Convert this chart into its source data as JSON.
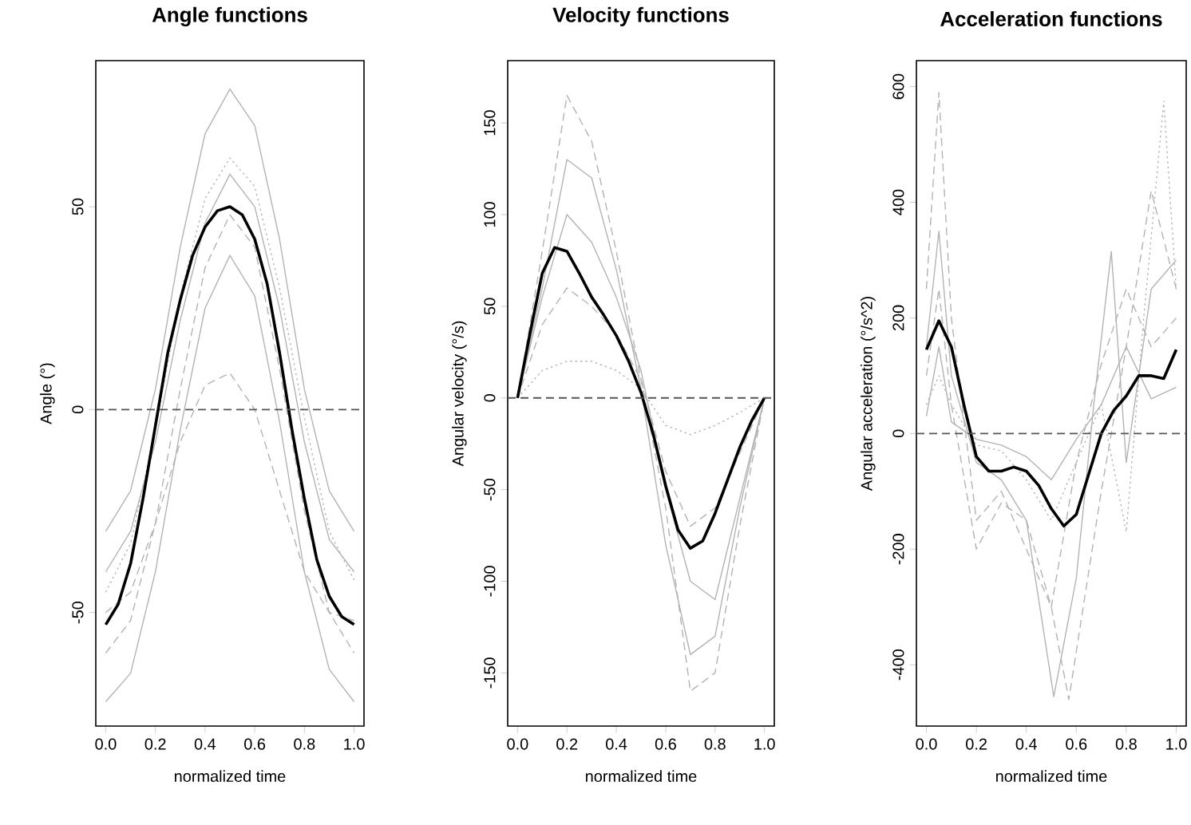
{
  "chart_data": [
    {
      "type": "line",
      "title": "Angle functions",
      "xlabel": "normalized time",
      "ylabel": "Angle (°)",
      "xlim": [
        -0.04,
        1.04
      ],
      "ylim": [
        -78,
        86
      ],
      "xticks": [
        {
          "value": 0,
          "label": "0.0"
        },
        {
          "value": 0.2,
          "label": "0.2"
        },
        {
          "value": 0.4,
          "label": "0.4"
        },
        {
          "value": 0.6,
          "label": "0.6"
        },
        {
          "value": 0.8,
          "label": "0.8"
        },
        {
          "value": 1,
          "label": "1.0"
        }
      ],
      "yticks": [
        -50,
        0,
        50
      ],
      "grid": false,
      "marker": "none",
      "ref_lines": [
        {
          "axis": "y",
          "value": 0,
          "color": "#555555",
          "line_style": "dashed"
        }
      ],
      "series": [
        {
          "color": "#b3b3b3",
          "line_style": "solid",
          "x": [
            0,
            0.1,
            0.2,
            0.3,
            0.4,
            0.5,
            0.6,
            0.7,
            0.8,
            0.9,
            1
          ],
          "values": [
            -30,
            -20,
            5,
            40,
            68,
            79,
            70,
            42,
            5,
            -20,
            -30
          ]
        },
        {
          "color": "#b3b3b3",
          "line_style": "solid",
          "x": [
            0,
            0.1,
            0.2,
            0.3,
            0.4,
            0.5,
            0.6,
            0.7,
            0.8,
            0.9,
            1
          ],
          "values": [
            -72,
            -65,
            -40,
            -5,
            25,
            38,
            28,
            -3,
            -40,
            -64,
            -72
          ]
        },
        {
          "color": "#b3b3b3",
          "line_style": "dashed",
          "x": [
            0,
            0.1,
            0.2,
            0.3,
            0.4,
            0.5,
            0.6,
            0.7,
            0.8,
            0.9,
            1
          ],
          "values": [
            -50,
            -45,
            -28,
            -8,
            6,
            9,
            0,
            -20,
            -40,
            -50,
            -52
          ]
        },
        {
          "color": "#b3b3b3",
          "line_style": "dotted",
          "x": [
            0,
            0.1,
            0.2,
            0.3,
            0.4,
            0.5,
            0.6,
            0.7,
            0.8,
            0.9,
            1
          ],
          "values": [
            -45,
            -33,
            -5,
            28,
            52,
            62,
            55,
            30,
            -2,
            -30,
            -42
          ]
        },
        {
          "color": "#b3b3b3",
          "line_style": "dashed",
          "x": [
            0,
            0.1,
            0.2,
            0.3,
            0.4,
            0.5,
            0.6,
            0.7,
            0.8,
            0.9,
            1
          ],
          "values": [
            -60,
            -52,
            -28,
            5,
            35,
            48,
            40,
            10,
            -25,
            -50,
            -60
          ]
        },
        {
          "color": "#b3b3b3",
          "line_style": "solid",
          "x": [
            0,
            0.1,
            0.2,
            0.3,
            0.4,
            0.5,
            0.6,
            0.7,
            0.8,
            0.9,
            1
          ],
          "values": [
            -40,
            -30,
            -8,
            22,
            46,
            58,
            50,
            25,
            -8,
            -32,
            -40
          ]
        },
        {
          "color": "#000000",
          "line_style": "solid",
          "x": [
            0,
            0.05,
            0.1,
            0.15,
            0.2,
            0.25,
            0.3,
            0.35,
            0.4,
            0.45,
            0.5,
            0.55,
            0.6,
            0.65,
            0.7,
            0.75,
            0.8,
            0.85,
            0.9,
            0.95,
            1
          ],
          "values": [
            -53,
            -48,
            -38,
            -22,
            -4,
            14,
            27,
            38,
            45,
            49,
            50,
            48,
            42,
            31,
            14,
            -5,
            -22,
            -37,
            -46,
            -51,
            -53
          ]
        }
      ]
    },
    {
      "type": "line",
      "title": "Velocity functions",
      "xlabel": "normalized time",
      "ylabel": "Angular velocity (°/s)",
      "xlim": [
        -0.04,
        1.04
      ],
      "ylim": [
        -179,
        184
      ],
      "xticks": [
        {
          "value": 0,
          "label": "0.0"
        },
        {
          "value": 0.2,
          "label": "0.2"
        },
        {
          "value": 0.4,
          "label": "0.4"
        },
        {
          "value": 0.6,
          "label": "0.6"
        },
        {
          "value": 0.8,
          "label": "0.8"
        },
        {
          "value": 1,
          "label": "1.0"
        }
      ],
      "yticks": [
        -150,
        -100,
        -50,
        0,
        50,
        100,
        150
      ],
      "grid": false,
      "marker": "none",
      "ref_lines": [
        {
          "axis": "y",
          "value": 0,
          "color": "#555555",
          "line_style": "dashed"
        }
      ],
      "series": [
        {
          "color": "#b3b3b3",
          "line_style": "dashed",
          "x": [
            0,
            0.1,
            0.2,
            0.3,
            0.4,
            0.5,
            0.6,
            0.7,
            0.8,
            0.9,
            1
          ],
          "values": [
            0,
            80,
            165,
            140,
            80,
            10,
            -60,
            -160,
            -150,
            -70,
            0
          ]
        },
        {
          "color": "#b3b3b3",
          "line_style": "solid",
          "x": [
            0,
            0.1,
            0.2,
            0.3,
            0.4,
            0.5,
            0.6,
            0.7,
            0.8,
            0.9,
            1
          ],
          "values": [
            0,
            60,
            130,
            120,
            70,
            5,
            -80,
            -140,
            -130,
            -60,
            0
          ]
        },
        {
          "color": "#b3b3b3",
          "line_style": "dotted",
          "x": [
            0,
            0.1,
            0.2,
            0.3,
            0.4,
            0.5,
            0.6,
            0.7,
            0.8,
            0.9,
            1
          ],
          "values": [
            0,
            15,
            20,
            20,
            15,
            5,
            -15,
            -20,
            -15,
            -8,
            0
          ]
        },
        {
          "color": "#b3b3b3",
          "line_style": "dashed",
          "x": [
            0,
            0.1,
            0.2,
            0.3,
            0.4,
            0.5,
            0.6,
            0.7,
            0.8,
            0.9,
            1
          ],
          "values": [
            0,
            40,
            60,
            50,
            35,
            10,
            -40,
            -70,
            -60,
            -30,
            0
          ]
        },
        {
          "color": "#b3b3b3",
          "line_style": "solid",
          "x": [
            0,
            0.1,
            0.2,
            0.3,
            0.4,
            0.5,
            0.6,
            0.7,
            0.8,
            0.9,
            1
          ],
          "values": [
            0,
            55,
            100,
            85,
            55,
            15,
            -50,
            -100,
            -110,
            -55,
            0
          ]
        },
        {
          "color": "#000000",
          "line_style": "solid",
          "x": [
            0,
            0.05,
            0.1,
            0.15,
            0.2,
            0.25,
            0.3,
            0.35,
            0.4,
            0.45,
            0.5,
            0.55,
            0.6,
            0.65,
            0.7,
            0.75,
            0.8,
            0.85,
            0.9,
            0.95,
            1
          ],
          "values": [
            0,
            35,
            68,
            82,
            80,
            68,
            55,
            45,
            34,
            20,
            3,
            -20,
            -48,
            -72,
            -82,
            -78,
            -63,
            -45,
            -27,
            -12,
            0
          ]
        }
      ]
    },
    {
      "type": "line",
      "title": "Acceleration functions",
      "xlabel": "normalized time",
      "ylabel": "Angular acceleration (°/s^2)",
      "xlim": [
        -0.04,
        1.04
      ],
      "ylim": [
        -506,
        645
      ],
      "xticks": [
        {
          "value": 0,
          "label": "0.0"
        },
        {
          "value": 0.2,
          "label": "0.2"
        },
        {
          "value": 0.4,
          "label": "0.4"
        },
        {
          "value": 0.6,
          "label": "0.6"
        },
        {
          "value": 0.8,
          "label": "0.8"
        },
        {
          "value": 1,
          "label": "1.0"
        }
      ],
      "yticks": [
        -400,
        -200,
        0,
        200,
        400,
        600
      ],
      "grid": false,
      "marker": "none",
      "ref_lines": [
        {
          "axis": "y",
          "value": 0,
          "color": "#555555",
          "line_style": "dashed"
        }
      ],
      "series": [
        {
          "color": "#b3b3b3",
          "line_style": "dashed",
          "x": [
            0,
            0.05,
            0.1,
            0.2,
            0.3,
            0.4,
            0.5,
            0.57,
            0.7,
            0.8,
            0.9,
            1
          ],
          "values": [
            250,
            590,
            200,
            -150,
            -100,
            -200,
            -300,
            -460,
            -100,
            150,
            420,
            250
          ]
        },
        {
          "color": "#b3b3b3",
          "line_style": "solid",
          "x": [
            0,
            0.05,
            0.1,
            0.2,
            0.3,
            0.4,
            0.51,
            0.6,
            0.67,
            0.74,
            0.8,
            0.9,
            1
          ],
          "values": [
            150,
            350,
            100,
            -50,
            -80,
            -150,
            -455,
            -250,
            50,
            315,
            -50,
            250,
            300
          ]
        },
        {
          "color": "#b3b3b3",
          "line_style": "dotted",
          "x": [
            0,
            0.05,
            0.1,
            0.2,
            0.3,
            0.4,
            0.5,
            0.6,
            0.7,
            0.8,
            0.87,
            0.95,
            1
          ],
          "values": [
            50,
            100,
            50,
            -20,
            -30,
            -80,
            -150,
            -50,
            50,
            -170,
            200,
            575,
            250
          ]
        },
        {
          "color": "#b3b3b3",
          "line_style": "solid",
          "x": [
            0,
            0.05,
            0.1,
            0.2,
            0.3,
            0.4,
            0.5,
            0.6,
            0.7,
            0.8,
            0.9,
            1
          ],
          "values": [
            30,
            150,
            20,
            -10,
            -20,
            -40,
            -80,
            -10,
            50,
            150,
            60,
            80
          ]
        },
        {
          "color": "#b3b3b3",
          "line_style": "dashed",
          "x": [
            0,
            0.05,
            0.1,
            0.2,
            0.3,
            0.4,
            0.5,
            0.6,
            0.7,
            0.8,
            0.9,
            1
          ],
          "values": [
            100,
            250,
            50,
            -200,
            -120,
            -150,
            -300,
            -50,
            120,
            250,
            150,
            200
          ]
        },
        {
          "color": "#000000",
          "line_style": "solid",
          "x": [
            0,
            0.05,
            0.1,
            0.15,
            0.2,
            0.25,
            0.3,
            0.35,
            0.4,
            0.45,
            0.5,
            0.55,
            0.6,
            0.65,
            0.7,
            0.75,
            0.8,
            0.85,
            0.9,
            0.95,
            1
          ],
          "values": [
            145,
            195,
            150,
            50,
            -40,
            -65,
            -65,
            -58,
            -65,
            -90,
            -130,
            -160,
            -140,
            -70,
            0,
            40,
            65,
            100,
            100,
            95,
            145
          ]
        }
      ]
    }
  ]
}
